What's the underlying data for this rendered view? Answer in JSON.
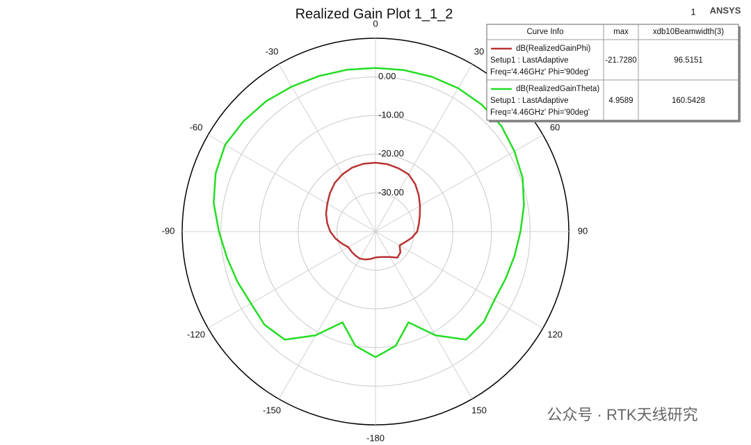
{
  "chart_data": {
    "type": "polar",
    "title": "Realized Gain Plot 1_1_2",
    "corner_number": "1",
    "brand": "ANSYS",
    "watermark": "公众号 · RTK天线研究",
    "direction": "clockwise",
    "zero_location": "top",
    "x": [
      -180,
      -170,
      -160,
      -150,
      -140,
      -130,
      -120,
      -110,
      -100,
      -90,
      -80,
      -70,
      -60,
      -50,
      -40,
      -30,
      -20,
      -10,
      0,
      10,
      20,
      30,
      40,
      50,
      60,
      70,
      80,
      90,
      100,
      110,
      120,
      130,
      140,
      150,
      160,
      170,
      180
    ],
    "xticks": [
      0,
      30,
      60,
      90,
      120,
      150,
      -180,
      -150,
      -120,
      -90,
      -60,
      -30
    ],
    "rlim": [
      -40,
      10
    ],
    "rticks": [
      {
        "value": 0,
        "label": "0.00"
      },
      {
        "value": -10,
        "label": "-10.00"
      },
      {
        "value": -20,
        "label": "-20.00"
      },
      {
        "value": -30,
        "label": "-30.00"
      }
    ],
    "grid": true,
    "series": [
      {
        "name": "dB(RealizedGainPhi)",
        "color": "#b83232",
        "values": [
          -33.3,
          -32.8,
          -32.3,
          -31.9,
          -31.9,
          -31.9,
          -31.9,
          -30.8,
          -29.5,
          -28.3,
          -27.3,
          -26.4,
          -25.6,
          -24.6,
          -23.6,
          -22.9,
          -22.4,
          -22.2,
          -22.2,
          -22.3,
          -22.6,
          -22.9,
          -24,
          -25.4,
          -26.7,
          -27.8,
          -28.6,
          -29.2,
          -30.5,
          -31.9,
          -32.8,
          -31.6,
          -31.2,
          -32.4,
          -33,
          -33.3,
          -33.3
        ]
      },
      {
        "name": "dB(RealizedGainTheta)",
        "color": "#22dd22",
        "values": [
          -7.5,
          -10,
          -15,
          -9,
          -3.5,
          -2.5,
          -2.8,
          -2,
          -1,
          0.5,
          2.5,
          4,
          4.9,
          4.5,
          4,
          3.3,
          2.8,
          2.5,
          2.3,
          2.4,
          2.6,
          2.8,
          2.8,
          2.5,
          1.5,
          0.5,
          -1,
          -2.5,
          -3.5,
          -4.2,
          -4.5,
          -3.5,
          -3.5,
          -9,
          -15,
          -10,
          -7.5
        ]
      }
    ],
    "legend_table": {
      "header": [
        "Curve Info",
        "max",
        "xdb10Beamwidth(3)"
      ],
      "rows": [
        {
          "setup": "Setup1 : LastAdaptive",
          "freq": "Freq='4.46GHz' Phi='90deg'",
          "max": "-21.7280",
          "beamwidth": "96.5151"
        },
        {
          "setup": "Setup1 : LastAdaptive",
          "freq": "Freq='4.46GHz' Phi='90deg'",
          "max": "4.9589",
          "beamwidth": "160.5428"
        }
      ]
    }
  }
}
